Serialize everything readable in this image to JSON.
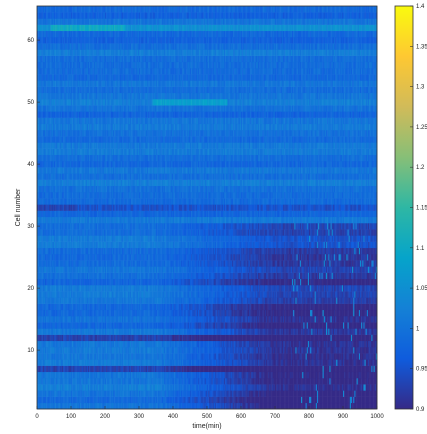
{
  "chart_data": {
    "type": "heatmap",
    "title": "",
    "xlabel": "time(min)",
    "ylabel": "Cell number",
    "xlim": [
      0,
      1000
    ],
    "ylim": [
      1,
      65
    ],
    "x_ticks": [
      "0",
      "100",
      "200",
      "300",
      "400",
      "500",
      "600",
      "700",
      "800",
      "900",
      "1000"
    ],
    "y_ticks": [
      "10",
      "20",
      "30",
      "40",
      "50",
      "60"
    ],
    "colorbar": {
      "range": [
        0.9,
        1.4
      ],
      "ticks": [
        "0.9",
        "0.95",
        "1",
        "1.05",
        "1.1",
        "1.15",
        "1.2",
        "1.25",
        "1.3",
        "1.35",
        "1.4"
      ],
      "colormap": "parula",
      "stops": [
        "#352a87",
        "#0f5cdd",
        "#1481d6",
        "#06a4ca",
        "#2eb7a4",
        "#87bf77",
        "#d1bb59",
        "#fec832",
        "#f9fb0e"
      ]
    },
    "rows": 65,
    "time_points": 300,
    "series_summary": [
      {
        "cell": 62,
        "baseline": 1.05,
        "note": "brightest early trace, ~1.10 around 50–250 min"
      },
      {
        "cell": 50,
        "baseline": 1.02,
        "note": "elevated to ~1.08 around 350–550 min"
      },
      {
        "cell": 33,
        "baseline": 0.95,
        "note": "dark band 0–120 min"
      },
      {
        "cell": 12,
        "baseline": 0.93,
        "note": "low ratio across most of run"
      },
      {
        "cell": 7,
        "baseline": 0.93,
        "note": "low ratio after 200 min"
      }
    ],
    "trend": "Cells 1–30 decline from ~1.0 to ~0.90–0.93 after ~600 min; cells 40–65 remain ~1.0–1.05; speckled high values (~1.02–1.05) appear late (800–1000 min) in low cells"
  }
}
